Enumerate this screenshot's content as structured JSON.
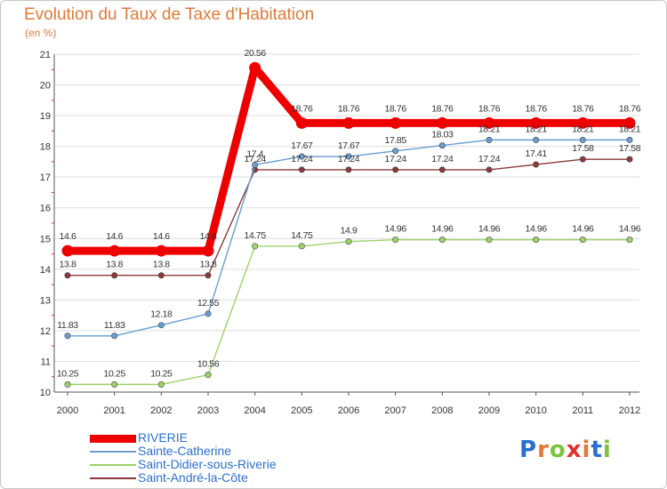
{
  "header": {
    "title": "Evolution du Taux de Taxe d'Habitation",
    "subtitle": "(en %)"
  },
  "logo": {
    "text": "Proxiti",
    "letters": [
      {
        "ch": "P",
        "color": "#2a6fd0"
      },
      {
        "ch": "r",
        "color": "#e07a3a"
      },
      {
        "ch": "o",
        "color": "#7cc43c"
      },
      {
        "ch": "x",
        "color": "#e03030"
      },
      {
        "ch": "i",
        "color": "#e07a3a"
      },
      {
        "ch": "t",
        "color": "#2a6fd0"
      },
      {
        "ch": "i",
        "color": "#7cc43c"
      }
    ]
  },
  "chart_data": {
    "type": "line",
    "title": "Evolution du Taux de Taxe d'Habitation",
    "ylabel": "(en %)",
    "xlabel": "",
    "categories": [
      "2000",
      "2001",
      "2002",
      "2003",
      "2004",
      "2005",
      "2006",
      "2007",
      "2008",
      "2009",
      "2010",
      "2011",
      "2012"
    ],
    "ylim": [
      10,
      21
    ],
    "yticks": [
      "10",
      "11",
      "12",
      "13",
      "14",
      "15",
      "16",
      "17",
      "18",
      "19",
      "20",
      "21"
    ],
    "grid": "horizontal",
    "series": [
      {
        "name": "RIVERIE",
        "color": "#ee0000",
        "width": 9,
        "values": [
          14.6,
          14.6,
          14.6,
          14.6,
          20.56,
          18.76,
          18.76,
          18.76,
          18.76,
          18.76,
          18.76,
          18.76,
          18.76
        ],
        "labels": [
          "14.6",
          "14.6",
          "14.6",
          "14.6",
          "20.56",
          "18.76",
          "18.76",
          "18.76",
          "18.76",
          "18.76",
          "18.76",
          "18.76",
          "18.76"
        ]
      },
      {
        "name": "Sainte-Catherine",
        "color": "#6a9ed0",
        "width": 1.4,
        "values": [
          11.83,
          11.83,
          12.18,
          12.55,
          17.4,
          17.67,
          17.67,
          17.85,
          18.03,
          18.21,
          18.21,
          18.21,
          18.21
        ],
        "labels": [
          "11.83",
          "11.83",
          "12.18",
          "12.55",
          "17.4",
          "17.67",
          "17.67",
          "17.85",
          "18.03",
          "18.21",
          "18.21",
          "18.21",
          "18.21"
        ]
      },
      {
        "name": "Saint-Didier-sous-Riverie",
        "color": "#9ed26a",
        "width": 1.4,
        "values": [
          10.25,
          10.25,
          10.25,
          10.56,
          14.75,
          14.75,
          14.9,
          14.96,
          14.96,
          14.96,
          14.96,
          14.96,
          14.96
        ],
        "labels": [
          "10.25",
          "10.25",
          "10.25",
          "10.56",
          "14.75",
          "14.75",
          "14.9",
          "14.96",
          "14.96",
          "14.96",
          "14.96",
          "14.96",
          "14.96"
        ]
      },
      {
        "name": "Saint-André-la-Côte",
        "color": "#8a3a3a",
        "width": 1.4,
        "values": [
          13.8,
          13.8,
          13.8,
          13.8,
          17.24,
          17.24,
          17.24,
          17.24,
          17.24,
          17.24,
          17.41,
          17.58,
          17.58
        ],
        "labels": [
          "13.8",
          "13.8",
          "13.8",
          "13.8",
          "17.24",
          "17.24",
          "17.24",
          "17.24",
          "17.24",
          "17.24",
          "17.41",
          "17.58",
          "17.58"
        ]
      }
    ],
    "legend": "bottom-left"
  }
}
